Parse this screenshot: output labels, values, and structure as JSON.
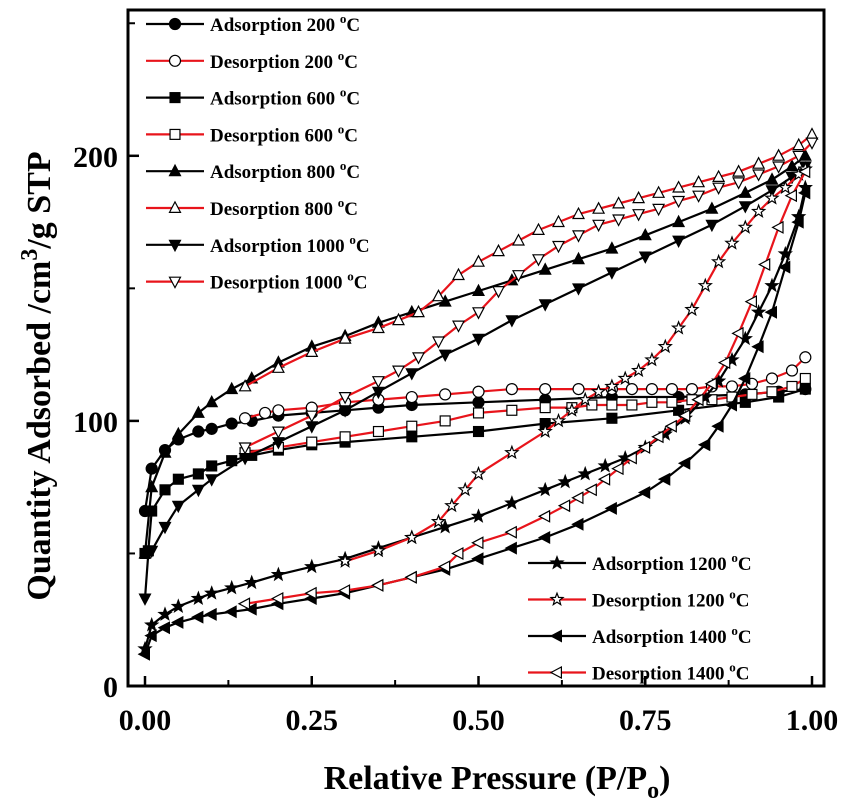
{
  "chart_data": {
    "type": "line",
    "title": "",
    "xlabel": "Relative Pressure (P/P",
    "xlabel_sub": "o",
    "xlabel_end": ")",
    "ylabel": "Quantity Adsorbed /cm",
    "ylabel_sup": "3",
    "ylabel_end": "/g STP",
    "xlim": [
      0,
      1
    ],
    "ylim": [
      0,
      255
    ],
    "x_ticks": [
      0,
      0.25,
      0.5,
      0.75,
      1.0
    ],
    "x_tick_labels": [
      "0.00",
      "0.25",
      "0.50",
      "0.75",
      "1.00"
    ],
    "y_ticks": [
      0,
      100,
      200
    ],
    "y_tick_labels": [
      "0",
      "100",
      "200"
    ],
    "legend_positions": [
      "top-left",
      "bottom-right"
    ],
    "legend_unit_sup": "o",
    "legend_unit": "C",
    "colors": {
      "adsorption": "#000000",
      "desorption": "#e8141b"
    },
    "series": [
      {
        "name": "Adsorption 200",
        "legend_group": 0,
        "kind": "adsorption",
        "marker": "circle-filled",
        "x": [
          0,
          0.01,
          0.03,
          0.05,
          0.08,
          0.1,
          0.13,
          0.16,
          0.2,
          0.25,
          0.3,
          0.35,
          0.4,
          0.5,
          0.6,
          0.7,
          0.8,
          0.9,
          0.95,
          0.99
        ],
        "y": [
          66,
          82,
          89,
          93,
          96,
          97,
          99,
          100,
          102,
          103,
          104,
          105,
          106,
          107,
          108,
          109,
          109,
          110,
          111,
          112
        ]
      },
      {
        "name": "Desorption 200",
        "legend_group": 0,
        "kind": "desorption",
        "marker": "circle-open",
        "x": [
          0.99,
          0.97,
          0.94,
          0.91,
          0.88,
          0.85,
          0.82,
          0.79,
          0.76,
          0.73,
          0.7,
          0.65,
          0.6,
          0.55,
          0.5,
          0.45,
          0.4,
          0.35,
          0.3,
          0.25,
          0.2,
          0.18,
          0.15
        ],
        "y": [
          124,
          119,
          116,
          114,
          113,
          113,
          112,
          112,
          112,
          112,
          112,
          112,
          112,
          112,
          111,
          110,
          109,
          108,
          107,
          105,
          104,
          103,
          101
        ]
      },
      {
        "name": "Adsorption 600",
        "legend_group": 0,
        "kind": "adsorption",
        "marker": "square-filled",
        "x": [
          0,
          0.005,
          0.01,
          0.03,
          0.05,
          0.08,
          0.1,
          0.13,
          0.16,
          0.2,
          0.25,
          0.3,
          0.4,
          0.5,
          0.6,
          0.7,
          0.8,
          0.9,
          0.95,
          0.99
        ],
        "y": [
          50,
          51,
          66,
          74,
          78,
          80,
          83,
          85,
          87,
          89,
          91,
          92,
          94,
          96,
          99,
          101,
          104,
          107,
          109,
          112
        ]
      },
      {
        "name": "Desorption 600",
        "legend_group": 0,
        "kind": "desorption",
        "marker": "square-open",
        "x": [
          0.99,
          0.97,
          0.94,
          0.91,
          0.88,
          0.85,
          0.82,
          0.79,
          0.76,
          0.73,
          0.7,
          0.67,
          0.64,
          0.6,
          0.55,
          0.5,
          0.45,
          0.4,
          0.35,
          0.3,
          0.25,
          0.2,
          0.15
        ],
        "y": [
          116,
          113,
          111,
          110,
          109,
          108,
          108,
          107,
          107,
          106,
          106,
          106,
          105,
          105,
          104,
          103,
          100,
          98,
          96,
          94,
          92,
          90,
          88
        ]
      },
      {
        "name": "Adsorption 800",
        "legend_group": 0,
        "kind": "adsorption",
        "marker": "triangle-up-filled",
        "x": [
          0,
          0.01,
          0.03,
          0.05,
          0.08,
          0.1,
          0.13,
          0.16,
          0.2,
          0.25,
          0.3,
          0.35,
          0.4,
          0.45,
          0.5,
          0.55,
          0.6,
          0.65,
          0.7,
          0.75,
          0.8,
          0.85,
          0.9,
          0.94,
          0.97,
          0.99
        ],
        "y": [
          50,
          75,
          88,
          95,
          103,
          107,
          112,
          116,
          122,
          128,
          132,
          137,
          141,
          145,
          149,
          153,
          157,
          161,
          165,
          170,
          175,
          180,
          186,
          191,
          196,
          200
        ]
      },
      {
        "name": "Desorption 800",
        "legend_group": 0,
        "kind": "desorption",
        "marker": "triangle-up-open",
        "x": [
          1.0,
          0.98,
          0.95,
          0.92,
          0.89,
          0.86,
          0.83,
          0.8,
          0.77,
          0.74,
          0.71,
          0.68,
          0.65,
          0.62,
          0.59,
          0.56,
          0.53,
          0.5,
          0.47,
          0.44,
          0.41,
          0.38,
          0.35,
          0.3,
          0.25,
          0.2,
          0.15
        ],
        "y": [
          208,
          204,
          200,
          197,
          194,
          192,
          190,
          188,
          186,
          184,
          182,
          180,
          178,
          175,
          172,
          168,
          164,
          160,
          155,
          147,
          141,
          138,
          135,
          131,
          126,
          120,
          113
        ]
      },
      {
        "name": "Adsorption 1000",
        "legend_group": 0,
        "kind": "adsorption",
        "marker": "triangle-down-filled",
        "x": [
          0,
          0.005,
          0.01,
          0.03,
          0.05,
          0.08,
          0.1,
          0.15,
          0.2,
          0.25,
          0.3,
          0.35,
          0.4,
          0.45,
          0.5,
          0.55,
          0.6,
          0.65,
          0.7,
          0.75,
          0.8,
          0.85,
          0.9,
          0.94,
          0.97,
          0.99
        ],
        "y": [
          33,
          50,
          51,
          60,
          68,
          74,
          78,
          86,
          92,
          98,
          104,
          111,
          118,
          125,
          131,
          138,
          144,
          150,
          156,
          162,
          168,
          174,
          181,
          187,
          192,
          196
        ]
      },
      {
        "name": "Desorption 1000",
        "legend_group": 0,
        "kind": "desorption",
        "marker": "triangle-down-open",
        "x": [
          1.0,
          0.98,
          0.95,
          0.92,
          0.89,
          0.86,
          0.83,
          0.8,
          0.77,
          0.74,
          0.71,
          0.68,
          0.65,
          0.62,
          0.59,
          0.56,
          0.53,
          0.5,
          0.47,
          0.44,
          0.41,
          0.38,
          0.35,
          0.3,
          0.25,
          0.2,
          0.15
        ],
        "y": [
          205,
          200,
          196,
          193,
          190,
          188,
          185,
          183,
          180,
          178,
          176,
          174,
          170,
          166,
          161,
          155,
          149,
          141,
          136,
          130,
          124,
          119,
          115,
          109,
          102,
          96,
          90
        ]
      },
      {
        "name": "Adsorption 1200",
        "legend_group": 1,
        "kind": "adsorption",
        "marker": "star-filled",
        "x": [
          0,
          0.01,
          0.03,
          0.05,
          0.08,
          0.1,
          0.13,
          0.16,
          0.2,
          0.25,
          0.3,
          0.35,
          0.4,
          0.45,
          0.5,
          0.55,
          0.6,
          0.63,
          0.66,
          0.69,
          0.72,
          0.75,
          0.78,
          0.81,
          0.84,
          0.86,
          0.88,
          0.9,
          0.92,
          0.94,
          0.96,
          0.98,
          0.99
        ],
        "y": [
          14,
          23,
          27,
          30,
          33,
          35,
          37,
          39,
          42,
          45,
          48,
          52,
          56,
          60,
          64,
          69,
          74,
          77,
          80,
          83,
          86,
          90,
          95,
          101,
          109,
          115,
          123,
          131,
          141,
          151,
          163,
          177,
          188
        ]
      },
      {
        "name": "Desorption 1200",
        "legend_group": 1,
        "kind": "desorption",
        "marker": "star-open",
        "x": [
          0.99,
          0.98,
          0.96,
          0.94,
          0.92,
          0.9,
          0.88,
          0.86,
          0.84,
          0.82,
          0.8,
          0.78,
          0.76,
          0.74,
          0.72,
          0.7,
          0.68,
          0.66,
          0.64,
          0.62,
          0.6,
          0.55,
          0.5,
          0.48,
          0.46,
          0.44,
          0.4,
          0.35,
          0.3
        ],
        "y": [
          195,
          193,
          188,
          184,
          179,
          173,
          167,
          160,
          151,
          142,
          135,
          128,
          123,
          119,
          116,
          113,
          111,
          108,
          104,
          100,
          96,
          88,
          80,
          74,
          68,
          62,
          56,
          51,
          47
        ]
      },
      {
        "name": "Adsorption 1400",
        "legend_group": 1,
        "kind": "adsorption",
        "marker": "triangle-left-filled",
        "x": [
          0,
          0.01,
          0.03,
          0.05,
          0.08,
          0.1,
          0.13,
          0.16,
          0.2,
          0.25,
          0.3,
          0.35,
          0.4,
          0.45,
          0.5,
          0.55,
          0.6,
          0.65,
          0.7,
          0.75,
          0.78,
          0.81,
          0.84,
          0.86,
          0.88,
          0.9,
          0.92,
          0.94,
          0.96,
          0.98,
          0.99
        ],
        "y": [
          12,
          19,
          22,
          24,
          26,
          27,
          28,
          29,
          31,
          33,
          35,
          38,
          41,
          44,
          48,
          52,
          56,
          61,
          67,
          73,
          78,
          84,
          91,
          98,
          106,
          116,
          128,
          141,
          158,
          175,
          186
        ]
      },
      {
        "name": "Desorption 1400",
        "legend_group": 1,
        "kind": "desorption",
        "marker": "triangle-left-open",
        "x": [
          0.99,
          0.97,
          0.95,
          0.93,
          0.91,
          0.89,
          0.87,
          0.85,
          0.83,
          0.81,
          0.79,
          0.77,
          0.75,
          0.73,
          0.71,
          0.69,
          0.67,
          0.65,
          0.63,
          0.6,
          0.55,
          0.5,
          0.47,
          0.45,
          0.4,
          0.35,
          0.3,
          0.25,
          0.2,
          0.15
        ],
        "y": [
          194,
          185,
          173,
          159,
          145,
          133,
          122,
          114,
          108,
          102,
          98,
          94,
          90,
          86,
          82,
          78,
          74,
          71,
          68,
          64,
          58,
          54,
          50,
          45,
          41,
          38,
          36,
          35,
          33,
          31
        ]
      }
    ]
  }
}
